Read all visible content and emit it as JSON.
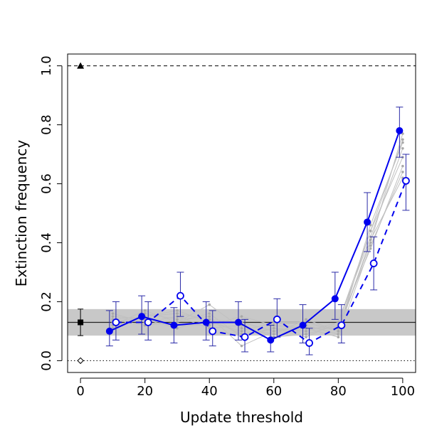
{
  "chart_data": {
    "type": "scatter",
    "title": "",
    "xlabel": "Update threshold",
    "ylabel": "Extinction frequency",
    "xlim": [
      -4,
      104
    ],
    "ylim": [
      -0.04,
      1.04
    ],
    "x_ticks": [
      0,
      20,
      40,
      60,
      80,
      100
    ],
    "y_ticks": [
      0.0,
      0.2,
      0.4,
      0.6,
      0.8,
      1.0
    ],
    "x_tick_labels": [
      "0",
      "20",
      "40",
      "60",
      "80",
      "100"
    ],
    "y_tick_labels": [
      "0.0",
      "0.2",
      "0.4",
      "0.6",
      "0.8",
      "1.0"
    ],
    "grid": false,
    "legend": "none",
    "reference": {
      "upper_line": {
        "y": 1.0,
        "style": "dashed",
        "marker": "filled-triangle",
        "marker_x": 0
      },
      "lower_line": {
        "y": 0.0,
        "style": "dotted",
        "marker": "open-diamond",
        "marker_x": 0
      },
      "baseline": {
        "y": 0.13,
        "lower": 0.085,
        "upper": 0.175,
        "marker": "filled-square",
        "marker_x": 0,
        "band_color": "#c8c8c8"
      }
    },
    "series": [
      {
        "style": "solid",
        "marker": "filled-circle",
        "color": "#0000ee",
        "x": [
          10,
          20,
          30,
          40,
          50,
          60,
          70,
          80,
          90,
          100
        ],
        "y": [
          0.1,
          0.15,
          0.12,
          0.13,
          0.13,
          0.07,
          0.12,
          0.21,
          0.47,
          0.78
        ],
        "err_low": [
          0.05,
          0.09,
          0.06,
          0.07,
          0.07,
          0.03,
          0.06,
          0.14,
          0.37,
          0.69
        ],
        "err_high": [
          0.17,
          0.22,
          0.18,
          0.2,
          0.2,
          0.12,
          0.19,
          0.3,
          0.57,
          0.86
        ]
      },
      {
        "style": "dashed",
        "marker": "open-circle",
        "color": "#0000ee",
        "x": [
          10,
          20,
          30,
          40,
          50,
          60,
          70,
          80,
          90,
          100
        ],
        "y": [
          0.13,
          0.13,
          0.22,
          0.1,
          0.08,
          0.14,
          0.06,
          0.12,
          0.33,
          0.61
        ],
        "err_low": [
          0.07,
          0.07,
          0.15,
          0.05,
          0.03,
          0.08,
          0.02,
          0.06,
          0.24,
          0.51
        ],
        "err_high": [
          0.2,
          0.2,
          0.3,
          0.17,
          0.14,
          0.21,
          0.11,
          0.19,
          0.42,
          0.7
        ]
      }
    ],
    "background_series_color": "#c0c0c0",
    "background_series": [
      {
        "x": [
          10,
          20,
          30,
          40,
          50,
          60,
          70,
          80,
          90,
          100
        ],
        "y": [
          0.14,
          0.15,
          0.16,
          0.14,
          0.09,
          0.11,
          0.1,
          0.13,
          0.42,
          0.72
        ]
      },
      {
        "x": [
          10,
          20,
          30,
          40,
          50,
          60,
          70,
          80,
          90,
          100
        ],
        "y": [
          0.12,
          0.17,
          0.13,
          0.19,
          0.11,
          0.09,
          0.14,
          0.1,
          0.4,
          0.77
        ]
      },
      {
        "x": [
          10,
          20,
          30,
          40,
          50,
          60,
          70,
          80,
          90,
          100
        ],
        "y": [
          0.15,
          0.14,
          0.12,
          0.12,
          0.15,
          0.12,
          0.11,
          0.11,
          0.44,
          0.69
        ]
      },
      {
        "x": [
          10,
          20,
          30,
          40,
          50,
          60,
          70,
          80,
          90,
          100
        ],
        "y": [
          0.11,
          0.16,
          0.14,
          0.15,
          0.05,
          0.1,
          0.12,
          0.09,
          0.46,
          0.74
        ]
      },
      {
        "x": [
          10,
          20,
          30,
          40,
          50,
          60,
          70,
          80,
          90,
          100
        ],
        "y": [
          0.16,
          0.13,
          0.15,
          0.11,
          0.12,
          0.08,
          0.09,
          0.12,
          0.38,
          0.66
        ]
      },
      {
        "x": [
          10,
          20,
          30,
          40,
          50,
          60,
          70,
          80,
          90,
          100
        ],
        "y": [
          0.13,
          0.15,
          0.17,
          0.13,
          0.1,
          0.13,
          0.13,
          0.1,
          0.41,
          0.62
        ]
      },
      {
        "x": [
          10,
          20,
          30,
          40,
          50,
          60,
          70,
          80,
          90,
          100
        ],
        "y": [
          0.14,
          0.12,
          0.13,
          0.16,
          0.08,
          0.11,
          0.08,
          0.13,
          0.44,
          0.75
        ]
      },
      {
        "x": [
          10,
          20,
          30,
          40,
          50,
          60,
          70,
          80,
          90,
          100
        ],
        "y": [
          0.12,
          0.14,
          0.11,
          0.14,
          0.13,
          0.1,
          0.11,
          0.08,
          0.39,
          0.64
        ]
      }
    ]
  }
}
